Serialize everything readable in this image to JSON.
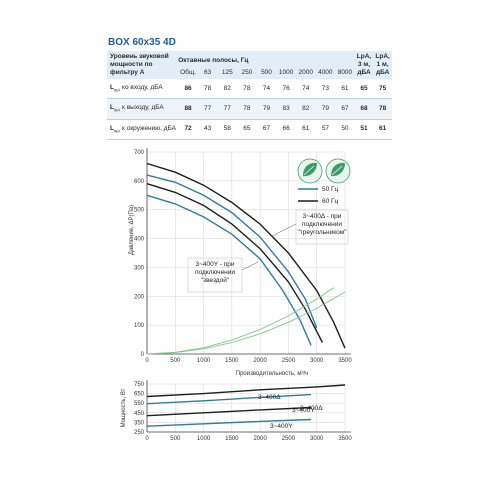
{
  "model": "BOX 60x35 4D",
  "noise_table": {
    "label_header": "Уровень звуковой мощности по фильтру А",
    "bands_header": "Октавные полосы, Гц",
    "columns": [
      "Общ.",
      "63",
      "125",
      "250",
      "500",
      "1000",
      "2000",
      "4000",
      "8000"
    ],
    "lpa3_header": "LpA, 3 м, дБА",
    "lpa1_header": "LpA, 1 м, дБА",
    "rows": [
      {
        "prefix": "L",
        "sub": "wA",
        "label": " ко входу, дБА",
        "values": [
          "86",
          "78",
          "82",
          "78",
          "74",
          "76",
          "74",
          "73",
          "61"
        ],
        "lpa3": "65",
        "lpa1": "75"
      },
      {
        "prefix": "L",
        "sub": "wA",
        "label": " к выходу, дБА",
        "values": [
          "88",
          "77",
          "77",
          "78",
          "79",
          "83",
          "82",
          "79",
          "67"
        ],
        "lpa3": "68",
        "lpa1": "78"
      },
      {
        "prefix": "L",
        "sub": "wA",
        "label": " к окружению, дБА",
        "values": [
          "72",
          "43",
          "58",
          "65",
          "67",
          "66",
          "61",
          "57",
          "50"
        ],
        "lpa3": "51",
        "lpa1": "61"
      }
    ]
  },
  "colors": {
    "hz50": "#2e7d9e",
    "hz60": "#1e1e1e",
    "system": "#7ec98a",
    "grid": "#d6d6d6",
    "badge": "#3f9a6d"
  },
  "chart_data": [
    {
      "type": "line",
      "ylabel": "Давление, ΔP(Па)",
      "xlabel": "Производительность, м³/ч",
      "xlim": [
        0,
        3500
      ],
      "ylim": [
        0,
        700
      ],
      "x_ticks": [
        0,
        500,
        1000,
        1500,
        2000,
        2500,
        3000,
        3500
      ],
      "y_ticks": [
        0,
        100,
        200,
        300,
        400,
        500,
        600,
        700
      ],
      "legend": [
        {
          "label": "50 Гц",
          "color_key": "hz50"
        },
        {
          "label": "60 Гц",
          "color_key": "hz60"
        }
      ],
      "annotations": [
        "3~400Δ - при подключении \"треугольником\"",
        "3~400Y - при подключении \"звездой\""
      ],
      "series": [
        {
          "color_key": "hz60",
          "x": [
            0,
            500,
            1000,
            1500,
            2000,
            2500,
            3000,
            3300,
            3500
          ],
          "y": [
            660,
            630,
            585,
            525,
            450,
            350,
            220,
            110,
            20
          ]
        },
        {
          "color_key": "hz60",
          "x": [
            0,
            500,
            1000,
            1500,
            2000,
            2500,
            2800,
            3100
          ],
          "y": [
            590,
            560,
            515,
            450,
            365,
            250,
            155,
            40
          ]
        },
        {
          "color_key": "hz50",
          "x": [
            0,
            500,
            1000,
            1500,
            2000,
            2500,
            2800,
            3000
          ],
          "y": [
            620,
            595,
            550,
            490,
            405,
            285,
            190,
            90
          ]
        },
        {
          "color_key": "hz50",
          "x": [
            0,
            500,
            1000,
            1500,
            2000,
            2400,
            2700,
            2900
          ],
          "y": [
            550,
            520,
            475,
            415,
            330,
            220,
            120,
            30
          ]
        },
        {
          "color_key": "system",
          "x": [
            0,
            500,
            1000,
            1500,
            2000,
            2500,
            3000,
            3300
          ],
          "y": [
            0,
            6,
            22,
            48,
            85,
            132,
            190,
            230
          ]
        },
        {
          "color_key": "system",
          "x": [
            0,
            500,
            1000,
            1500,
            2000,
            2500,
            3000,
            3500
          ],
          "y": [
            0,
            5,
            18,
            40,
            70,
            110,
            158,
            215
          ]
        }
      ]
    },
    {
      "type": "line",
      "ylabel": "Мощность, Вт",
      "xlim": [
        0,
        3500
      ],
      "ylim": [
        250,
        750
      ],
      "x_ticks": [
        0,
        500,
        1000,
        1500,
        2000,
        2500,
        3000,
        3500
      ],
      "y_ticks": [
        250,
        350,
        450,
        550,
        650,
        750
      ],
      "annotations": [
        "3~400Δ",
        "3~400Y",
        "3~400Δ",
        "3~400Y"
      ],
      "series": [
        {
          "color_key": "hz60",
          "x": [
            0,
            1000,
            2000,
            3000,
            3500
          ],
          "y": [
            620,
            650,
            690,
            720,
            740
          ]
        },
        {
          "color_key": "hz50",
          "x": [
            0,
            1000,
            2000,
            2900
          ],
          "y": [
            545,
            575,
            610,
            640
          ]
        },
        {
          "color_key": "hz60",
          "x": [
            0,
            1000,
            2000,
            2900
          ],
          "y": [
            420,
            450,
            480,
            505
          ]
        },
        {
          "color_key": "hz50",
          "x": [
            0,
            1000,
            2000,
            2900
          ],
          "y": [
            310,
            335,
            360,
            380
          ]
        }
      ]
    }
  ]
}
